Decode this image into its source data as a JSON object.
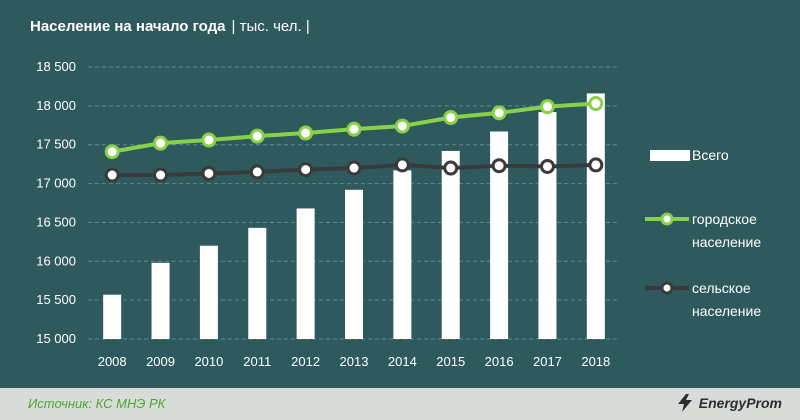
{
  "header": {
    "title": "Население на начало года",
    "unit": "| тыс. чел. |"
  },
  "footer": {
    "source": "Источник: КС МНЭ РК",
    "logo_text": "EnergyProm"
  },
  "colors": {
    "background": "#2e5a5e",
    "bars": "#ffffff",
    "urban": "#8ad14a",
    "rural": "#3a3a3a",
    "grid": "#5b8a8c",
    "source_text": "#4aa82e"
  },
  "legend": {
    "total": "Всего",
    "urban": [
      "городское",
      "население"
    ],
    "rural": [
      "сельское",
      "население"
    ]
  },
  "chart_data": {
    "type": "bar",
    "title": "Население на начало года",
    "ylabel": "тыс. чел.",
    "categories": [
      "2008",
      "2009",
      "2010",
      "2011",
      "2012",
      "2013",
      "2014",
      "2015",
      "2016",
      "2017",
      "2018"
    ],
    "ylim": [
      15000,
      18500
    ],
    "yticks": [
      15000,
      15500,
      16000,
      16500,
      17000,
      17500,
      18000,
      18500
    ],
    "ytick_labels": [
      "15 000",
      "15 500",
      "16 000",
      "16 500",
      "17 000",
      "17 500",
      "18 000",
      "18 500"
    ],
    "series": [
      {
        "name": "Всего",
        "kind": "bar",
        "values": [
          15570,
          15980,
          16200,
          16430,
          16680,
          16920,
          17170,
          17420,
          17670,
          17920,
          18160
        ]
      },
      {
        "name": "городское население",
        "kind": "line",
        "values": [
          17410,
          17520,
          17560,
          17610,
          17650,
          17700,
          17740,
          17850,
          17910,
          17990,
          18030
        ]
      },
      {
        "name": "сельское население",
        "kind": "line",
        "values": [
          17110,
          17110,
          17130,
          17150,
          17180,
          17200,
          17240,
          17200,
          17230,
          17220,
          17240
        ]
      }
    ]
  }
}
